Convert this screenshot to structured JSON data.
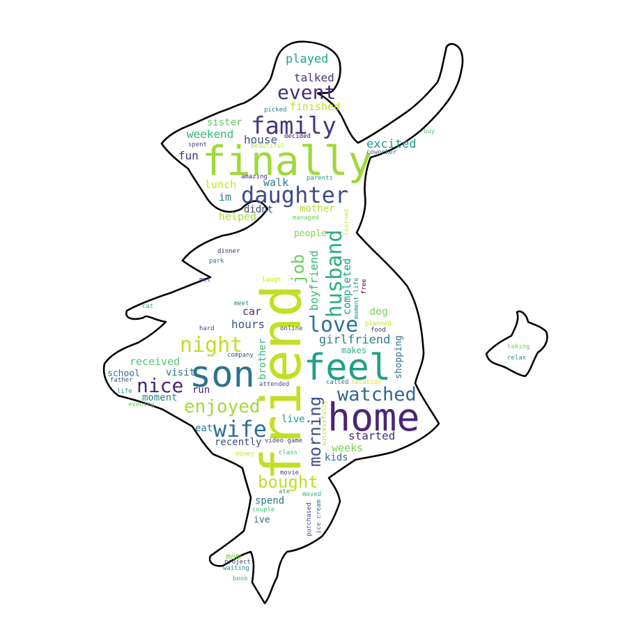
{
  "words": [
    {
      "text": "friend",
      "color": "#c2df23"
    },
    {
      "text": "finally",
      "color": "#9fd938"
    },
    {
      "text": "home",
      "color": "#482677"
    },
    {
      "text": "son",
      "color": "#2c728e"
    },
    {
      "text": "feel",
      "color": "#1fa187"
    },
    {
      "text": "daughter",
      "color": "#3e4a89"
    },
    {
      "text": "family",
      "color": "#453581"
    },
    {
      "text": "husband",
      "color": "#2ab07f"
    },
    {
      "text": "event",
      "color": "#472d7b"
    },
    {
      "text": "love",
      "color": "#2c728e"
    },
    {
      "text": "watched",
      "color": "#31688e"
    },
    {
      "text": "night",
      "color": "#bddf26"
    },
    {
      "text": "wife",
      "color": "#2d708e"
    },
    {
      "text": "nice",
      "color": "#482475"
    },
    {
      "text": "enjoyed",
      "color": "#a2da37"
    },
    {
      "text": "morning",
      "color": "#3b528b"
    },
    {
      "text": "bought",
      "color": "#bddf26"
    },
    {
      "text": "job",
      "color": "#6ccd5a"
    },
    {
      "text": "boyfriend",
      "color": "#35b779"
    },
    {
      "text": "girlfriend",
      "color": "#287c8e"
    },
    {
      "text": "completed",
      "color": "#1f9e89"
    },
    {
      "text": "played",
      "color": "#1fa187"
    },
    {
      "text": "talked",
      "color": "#46337e"
    },
    {
      "text": "finished",
      "color": "#c2df23"
    },
    {
      "text": "weekend",
      "color": "#35b779"
    },
    {
      "text": "sister",
      "color": "#5ec962"
    },
    {
      "text": "house",
      "color": "#39568c"
    },
    {
      "text": "excited",
      "color": "#1f988b"
    },
    {
      "text": "fun",
      "color": "#46337e"
    },
    {
      "text": "lunch",
      "color": "#cde11d"
    },
    {
      "text": "walk",
      "color": "#2a788e"
    },
    {
      "text": "im",
      "color": "#2a788e"
    },
    {
      "text": "didnt",
      "color": "#3e4a89"
    },
    {
      "text": "mother",
      "color": "#b5de2b"
    },
    {
      "text": "helped",
      "color": "#a8db34"
    },
    {
      "text": "people",
      "color": "#84d44b"
    },
    {
      "text": "hours",
      "color": "#3b528b"
    },
    {
      "text": "car",
      "color": "#482878"
    },
    {
      "text": "dog",
      "color": "#7ad151"
    },
    {
      "text": "makes",
      "color": "#2ab07f"
    },
    {
      "text": "shopping",
      "color": "#2e6e8e"
    },
    {
      "text": "brother",
      "color": "#35b779"
    },
    {
      "text": "received",
      "color": "#52c569"
    },
    {
      "text": "visit",
      "color": "#2e6f8e"
    },
    {
      "text": "school",
      "color": "#2a788e"
    },
    {
      "text": "moment",
      "color": "#25858e"
    },
    {
      "text": "run",
      "color": "#481f70"
    },
    {
      "text": "live",
      "color": "#1f988b"
    },
    {
      "text": "eat",
      "color": "#2c728e"
    },
    {
      "text": "recently",
      "color": "#3f4889"
    },
    {
      "text": "started",
      "color": "#472d7b"
    },
    {
      "text": "weeks",
      "color": "#7ad151"
    },
    {
      "text": "kids",
      "color": "#31688e"
    },
    {
      "text": "spend",
      "color": "#2a788e"
    },
    {
      "text": "ive",
      "color": "#31688e"
    },
    {
      "text": "mom",
      "color": "#7ad151"
    },
    {
      "text": "picked",
      "color": "#287c8e"
    },
    {
      "text": "buy",
      "color": "#5ec962"
    },
    {
      "text": "spent",
      "color": "#414487"
    },
    {
      "text": "decided",
      "color": "#440154"
    },
    {
      "text": "beautiful",
      "color": "#b5de2b"
    },
    {
      "text": "coworker",
      "color": "#31688e"
    },
    {
      "text": "amazing",
      "color": "#482475"
    },
    {
      "text": "parents",
      "color": "#1f988b"
    },
    {
      "text": "managed",
      "color": "#6ccd5a"
    },
    {
      "text": "learned",
      "color": "#dde318"
    },
    {
      "text": "dinner",
      "color": "#481f70"
    },
    {
      "text": "park",
      "color": "#2d708e"
    },
    {
      "text": "met",
      "color": "#46337e"
    },
    {
      "text": "laugh",
      "color": "#cde11d"
    },
    {
      "text": "moment life",
      "color": "#23898e"
    },
    {
      "text": "free",
      "color": "#440154"
    },
    {
      "text": "cat",
      "color": "#35b779"
    },
    {
      "text": "meet",
      "color": "#2a788e"
    },
    {
      "text": "hard",
      "color": "#3e4a89"
    },
    {
      "text": "online",
      "color": "#414487"
    },
    {
      "text": "planned",
      "color": "#c2df23"
    },
    {
      "text": "food",
      "color": "#482878"
    },
    {
      "text": "company",
      "color": "#3b528b"
    },
    {
      "text": "attended",
      "color": "#3b528b"
    },
    {
      "text": "called",
      "color": "#2d708e"
    },
    {
      "text": "vacation",
      "color": "#dde318"
    },
    {
      "text": "father",
      "color": "#3e4a89"
    },
    {
      "text": "life",
      "color": "#21918c"
    },
    {
      "text": "evening",
      "color": "#6ccd5a"
    },
    {
      "text": "successfully",
      "color": "#b5de2b"
    },
    {
      "text": "video game",
      "color": "#443983"
    },
    {
      "text": "money",
      "color": "#cde11d"
    },
    {
      "text": "class",
      "color": "#35b779"
    },
    {
      "text": "movie",
      "color": "#414487"
    },
    {
      "text": "ate",
      "color": "#21918c"
    },
    {
      "text": "moved",
      "color": "#2ab07f"
    },
    {
      "text": "purchased",
      "color": "#404688"
    },
    {
      "text": "ice cream",
      "color": "#2c728e"
    },
    {
      "text": "couple",
      "color": "#3dbc74"
    },
    {
      "text": "project",
      "color": "#443983"
    },
    {
      "text": "waiting",
      "color": "#25858e"
    },
    {
      "text": "book",
      "color": "#3dbc74"
    },
    {
      "text": "taking",
      "color": "#6ccd5a"
    },
    {
      "text": "relax",
      "color": "#21918c"
    }
  ]
}
